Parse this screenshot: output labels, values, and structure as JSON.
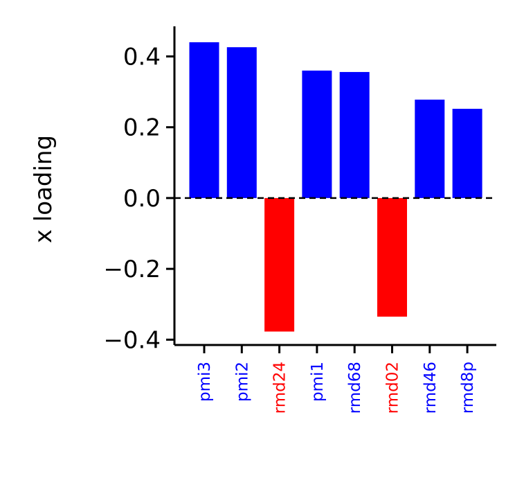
{
  "chart_data": {
    "type": "bar",
    "title": "",
    "xlabel": "",
    "ylabel": "x loading",
    "categories": [
      "pmi3",
      "pmi2",
      "rmd24",
      "pmi1",
      "rmd68",
      "rmd02",
      "rmd46",
      "rmd8p"
    ],
    "values": [
      0.44,
      0.426,
      -0.377,
      0.36,
      0.356,
      -0.335,
      0.278,
      0.252
    ],
    "bar_colors": [
      "#0000ff",
      "#0000ff",
      "#ff0000",
      "#0000ff",
      "#0000ff",
      "#ff0000",
      "#0000ff",
      "#0000ff"
    ],
    "ylim": [
      -0.415,
      0.485
    ],
    "yticks": [
      -0.4,
      -0.2,
      0.0,
      0.2,
      0.4
    ],
    "ytick_labels": [
      "−0.4",
      "−0.2",
      "0.0",
      "0.2",
      "0.4"
    ],
    "zero_line": "dashed",
    "grid": false,
    "legend": "none"
  }
}
